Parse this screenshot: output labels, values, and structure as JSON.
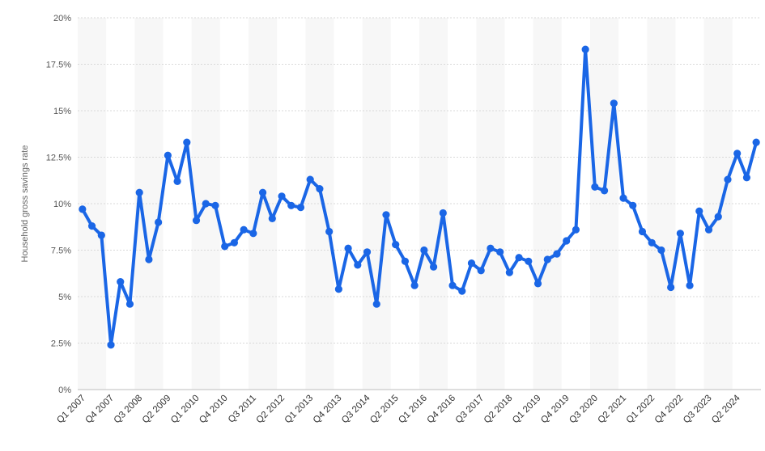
{
  "chart_data": {
    "type": "line",
    "title": "",
    "xlabel": "",
    "ylabel": "Household gross savings rate",
    "ylim": [
      0,
      20
    ],
    "y_ticks": [
      0,
      2.5,
      5,
      7.5,
      10,
      12.5,
      15,
      17.5,
      20
    ],
    "y_tick_labels": [
      "0%",
      "2.5%",
      "5%",
      "7.5%",
      "10%",
      "12.5%",
      "15%",
      "17.5%",
      "20%"
    ],
    "x_tick_labels": [
      "Q1 2007",
      "Q4 2007",
      "Q3 2008",
      "Q2 2009",
      "Q1 2010",
      "Q4 2010",
      "Q3 2011",
      "Q2 2012",
      "Q1 2013",
      "Q4 2013",
      "Q3 2014",
      "Q2 2015",
      "Q1 2016",
      "Q4 2016",
      "Q3 2017",
      "Q2 2018",
      "Q1 2019",
      "Q4 2019",
      "Q3 2020",
      "Q2 2021",
      "Q1 2022",
      "Q4 2022",
      "Q3 2023",
      "Q2 2024"
    ],
    "x_tick_every": 3,
    "grid": true,
    "color": "#1a66e6",
    "categories": [
      "Q1 2007",
      "Q2 2007",
      "Q3 2007",
      "Q4 2007",
      "Q1 2008",
      "Q2 2008",
      "Q3 2008",
      "Q4 2008",
      "Q1 2009",
      "Q2 2009",
      "Q3 2009",
      "Q4 2009",
      "Q1 2010",
      "Q2 2010",
      "Q3 2010",
      "Q4 2010",
      "Q1 2011",
      "Q2 2011",
      "Q3 2011",
      "Q4 2011",
      "Q1 2012",
      "Q2 2012",
      "Q3 2012",
      "Q4 2012",
      "Q1 2013",
      "Q2 2013",
      "Q3 2013",
      "Q4 2013",
      "Q1 2014",
      "Q2 2014",
      "Q3 2014",
      "Q4 2014",
      "Q1 2015",
      "Q2 2015",
      "Q3 2015",
      "Q4 2015",
      "Q1 2016",
      "Q2 2016",
      "Q3 2016",
      "Q4 2016",
      "Q1 2017",
      "Q2 2017",
      "Q3 2017",
      "Q4 2017",
      "Q1 2018",
      "Q2 2018",
      "Q3 2018",
      "Q4 2018",
      "Q1 2019",
      "Q2 2019",
      "Q3 2019",
      "Q4 2019",
      "Q1 2020",
      "Q2 2020",
      "Q3 2020",
      "Q4 2020",
      "Q1 2021",
      "Q2 2021",
      "Q3 2021",
      "Q4 2021",
      "Q1 2022",
      "Q2 2022",
      "Q3 2022",
      "Q4 2022",
      "Q1 2023",
      "Q2 2023",
      "Q3 2023",
      "Q4 2023",
      "Q1 2024",
      "Q2 2024",
      "Q3 2024",
      "Q4 2024"
    ],
    "values": [
      9.7,
      8.8,
      8.3,
      2.4,
      5.8,
      4.6,
      10.6,
      7.0,
      9.0,
      12.6,
      11.2,
      13.3,
      9.1,
      10.0,
      9.9,
      7.7,
      7.9,
      8.6,
      8.4,
      10.6,
      9.2,
      10.4,
      9.9,
      9.8,
      11.3,
      10.8,
      8.5,
      5.4,
      7.6,
      6.7,
      7.4,
      4.6,
      9.4,
      7.8,
      6.9,
      5.6,
      7.5,
      6.6,
      9.5,
      5.6,
      5.3,
      6.8,
      6.4,
      7.6,
      7.4,
      6.3,
      7.1,
      6.9,
      5.7,
      7.0,
      7.3,
      8.0,
      8.6,
      18.3,
      10.9,
      10.7,
      15.4,
      10.3,
      9.9,
      8.5,
      7.9,
      7.5,
      5.5,
      8.4,
      5.6,
      9.6,
      8.6,
      9.3,
      11.3,
      12.7,
      11.4,
      13.3
    ]
  }
}
